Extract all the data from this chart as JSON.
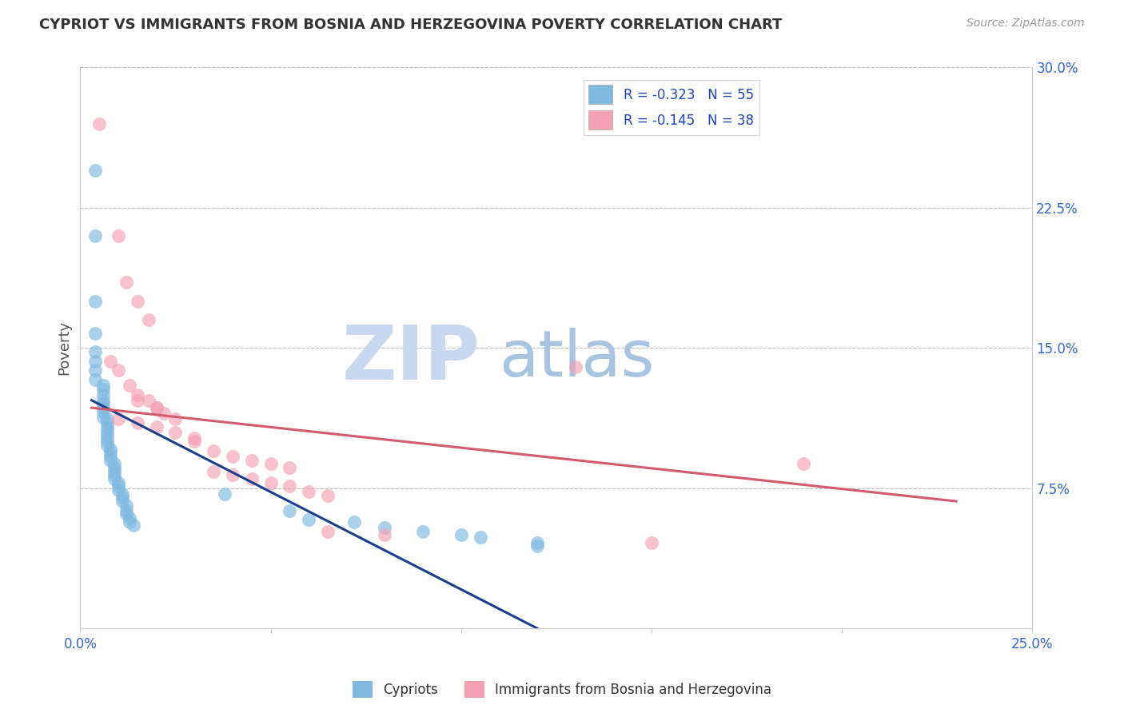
{
  "title": "CYPRIOT VS IMMIGRANTS FROM BOSNIA AND HERZEGOVINA POVERTY CORRELATION CHART",
  "source_text": "Source: ZipAtlas.com",
  "ylabel": "Poverty",
  "xlim": [
    0.0,
    0.25
  ],
  "ylim": [
    0.0,
    0.3
  ],
  "xticks": [
    0.0,
    0.05,
    0.1,
    0.15,
    0.2,
    0.25
  ],
  "xticklabels": [
    "0.0%",
    "",
    "",
    "",
    "",
    "25.0%"
  ],
  "yticks_right": [
    0.075,
    0.15,
    0.225,
    0.3
  ],
  "yticklabels_right": [
    "7.5%",
    "15.0%",
    "22.5%",
    "30.0%"
  ],
  "grid_yticks": [
    0.075,
    0.15,
    0.225,
    0.3
  ],
  "legend1_label": "R = -0.323   N = 55",
  "legend2_label": "R = -0.145   N = 38",
  "cypriot_color": "#7fb9e0",
  "bosnia_color": "#f4a0b5",
  "cypriot_line_color": "#1a3e8c",
  "bosnia_line_color": "#d45a6e",
  "watermark_zip_color": "#c8d8ee",
  "watermark_atlas_color": "#a8c4e0",
  "background_color": "#ffffff",
  "cypriot_scatter": [
    [
      0.004,
      0.245
    ],
    [
      0.004,
      0.21
    ],
    [
      0.004,
      0.175
    ],
    [
      0.004,
      0.158
    ],
    [
      0.004,
      0.148
    ],
    [
      0.004,
      0.143
    ],
    [
      0.004,
      0.138
    ],
    [
      0.004,
      0.133
    ],
    [
      0.006,
      0.13
    ],
    [
      0.006,
      0.128
    ],
    [
      0.006,
      0.125
    ],
    [
      0.006,
      0.122
    ],
    [
      0.006,
      0.12
    ],
    [
      0.006,
      0.118
    ],
    [
      0.006,
      0.116
    ],
    [
      0.006,
      0.113
    ],
    [
      0.007,
      0.112
    ],
    [
      0.007,
      0.11
    ],
    [
      0.007,
      0.108
    ],
    [
      0.007,
      0.106
    ],
    [
      0.007,
      0.104
    ],
    [
      0.007,
      0.102
    ],
    [
      0.007,
      0.1
    ],
    [
      0.007,
      0.098
    ],
    [
      0.008,
      0.096
    ],
    [
      0.008,
      0.094
    ],
    [
      0.008,
      0.092
    ],
    [
      0.008,
      0.09
    ],
    [
      0.009,
      0.088
    ],
    [
      0.009,
      0.086
    ],
    [
      0.009,
      0.084
    ],
    [
      0.009,
      0.082
    ],
    [
      0.009,
      0.08
    ],
    [
      0.01,
      0.078
    ],
    [
      0.01,
      0.076
    ],
    [
      0.01,
      0.074
    ],
    [
      0.011,
      0.072
    ],
    [
      0.011,
      0.07
    ],
    [
      0.011,
      0.068
    ],
    [
      0.012,
      0.066
    ],
    [
      0.012,
      0.063
    ],
    [
      0.012,
      0.061
    ],
    [
      0.013,
      0.059
    ],
    [
      0.013,
      0.057
    ],
    [
      0.014,
      0.055
    ],
    [
      0.038,
      0.072
    ],
    [
      0.055,
      0.063
    ],
    [
      0.072,
      0.057
    ],
    [
      0.09,
      0.052
    ],
    [
      0.105,
      0.049
    ],
    [
      0.12,
      0.046
    ],
    [
      0.1,
      0.05
    ],
    [
      0.06,
      0.058
    ],
    [
      0.08,
      0.054
    ],
    [
      0.12,
      0.044
    ]
  ],
  "bosnia_scatter": [
    [
      0.005,
      0.27
    ],
    [
      0.01,
      0.21
    ],
    [
      0.012,
      0.185
    ],
    [
      0.015,
      0.175
    ],
    [
      0.018,
      0.165
    ],
    [
      0.008,
      0.143
    ],
    [
      0.01,
      0.138
    ],
    [
      0.013,
      0.13
    ],
    [
      0.015,
      0.125
    ],
    [
      0.018,
      0.122
    ],
    [
      0.02,
      0.118
    ],
    [
      0.022,
      0.115
    ],
    [
      0.01,
      0.112
    ],
    [
      0.015,
      0.11
    ],
    [
      0.02,
      0.108
    ],
    [
      0.025,
      0.105
    ],
    [
      0.03,
      0.102
    ],
    [
      0.015,
      0.122
    ],
    [
      0.02,
      0.118
    ],
    [
      0.025,
      0.112
    ],
    [
      0.03,
      0.1
    ],
    [
      0.035,
      0.095
    ],
    [
      0.04,
      0.092
    ],
    [
      0.045,
      0.09
    ],
    [
      0.05,
      0.088
    ],
    [
      0.055,
      0.086
    ],
    [
      0.035,
      0.084
    ],
    [
      0.04,
      0.082
    ],
    [
      0.045,
      0.08
    ],
    [
      0.05,
      0.078
    ],
    [
      0.055,
      0.076
    ],
    [
      0.06,
      0.073
    ],
    [
      0.065,
      0.071
    ],
    [
      0.13,
      0.14
    ],
    [
      0.19,
      0.088
    ],
    [
      0.065,
      0.052
    ],
    [
      0.08,
      0.05
    ],
    [
      0.15,
      0.046
    ]
  ],
  "cypriot_trendline": [
    [
      0.003,
      0.122
    ],
    [
      0.12,
      0.0
    ]
  ],
  "bosnia_trendline": [
    [
      0.003,
      0.118
    ],
    [
      0.23,
      0.068
    ]
  ]
}
